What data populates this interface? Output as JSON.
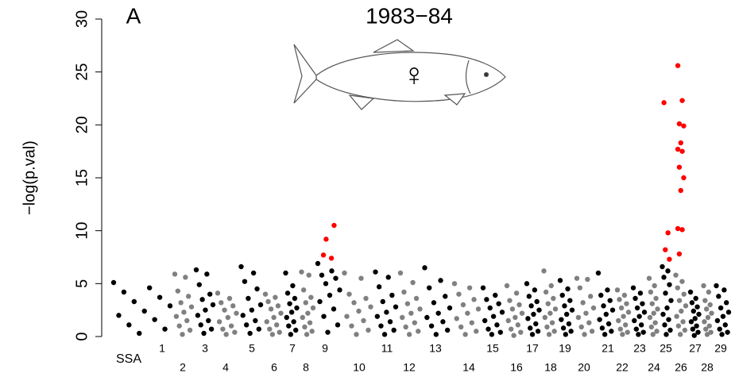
{
  "chart_data": {
    "type": "manhattan",
    "title": "1983−84",
    "panel_label": "A",
    "annotation": "♀",
    "y_label": "−log(p.val)",
    "x_label": "SSA",
    "ylim": [
      0,
      30
    ],
    "yticks": [
      0,
      5,
      10,
      15,
      20,
      25,
      30
    ],
    "colors": [
      "#000000",
      "#808080"
    ],
    "highlight_color": "#ff0000",
    "categories": [
      "1",
      "2",
      "3",
      "4",
      "5",
      "6",
      "7",
      "8",
      "9",
      "10",
      "11",
      "12",
      "13",
      "14",
      "15",
      "16",
      "17",
      "18",
      "19",
      "20",
      "21",
      "22",
      "23",
      "24",
      "25",
      "26",
      "27",
      "28",
      "29"
    ],
    "values": [
      [
        5.1,
        4.6,
        4.2,
        3.7,
        3.3,
        2.9,
        2.4,
        2.0,
        1.6,
        1.1,
        0.7,
        0.3
      ],
      [
        5.9,
        5.6,
        4.3,
        3.8,
        3.2,
        2.8,
        2.3,
        1.9,
        1.5,
        1.0,
        0.6,
        0.2
      ],
      [
        6.3,
        5.9,
        4.9,
        4.0,
        3.5,
        3.0,
        2.5,
        2.0,
        1.5,
        1.1,
        0.7,
        0.3
      ],
      [
        4.1,
        3.6,
        3.2,
        2.9,
        2.5,
        2.2,
        1.8,
        1.4,
        1.0,
        0.7,
        0.4,
        0.2
      ],
      [
        6.6,
        6.0,
        5.2,
        4.5,
        3.6,
        3.0,
        2.5,
        2.0,
        1.5,
        1.1,
        0.7,
        0.3
      ],
      [
        4.0,
        3.7,
        3.3,
        2.9,
        2.6,
        2.2,
        1.8,
        1.4,
        1.1,
        0.7,
        0.4,
        0.2
      ],
      [
        6.0,
        4.8,
        4.1,
        3.6,
        3.1,
        2.7,
        2.3,
        1.8,
        1.4,
        1.0,
        0.6,
        0.2
      ],
      [
        6.1,
        5.8,
        4.4,
        3.7,
        3.2,
        2.7,
        2.2,
        1.8,
        1.3,
        0.9,
        0.5,
        0.2
      ],
      [
        6.9,
        6.2,
        5.8,
        5.5,
        5.0,
        4.4,
        3.9,
        3.3,
        2.6,
        1.9,
        1.1,
        0.4
      ],
      [
        6.0,
        5.5,
        4.0,
        3.6,
        3.2,
        2.8,
        2.4,
        1.9,
        1.5,
        1.0,
        0.6,
        0.2
      ],
      [
        6.1,
        5.6,
        4.7,
        3.9,
        3.3,
        2.8,
        2.3,
        1.9,
        1.4,
        1.0,
        0.6,
        0.2
      ],
      [
        6.0,
        5.1,
        4.2,
        3.6,
        3.1,
        2.6,
        2.2,
        1.8,
        1.3,
        0.9,
        0.5,
        0.2
      ],
      [
        6.5,
        5.3,
        4.6,
        3.8,
        3.2,
        2.7,
        2.2,
        1.8,
        1.4,
        1.0,
        0.6,
        0.2
      ],
      [
        5.0,
        4.6,
        4.0,
        3.5,
        3.0,
        2.6,
        2.2,
        1.7,
        1.3,
        0.9,
        0.5,
        0.2
      ],
      [
        4.6,
        3.9,
        3.5,
        3.1,
        2.7,
        2.3,
        1.9,
        1.5,
        1.1,
        0.7,
        0.4,
        0.2
      ],
      [
        4.8,
        4.1,
        3.4,
        3.0,
        2.6,
        2.2,
        1.8,
        1.5,
        1.1,
        0.7,
        0.4,
        0.1
      ],
      [
        5.0,
        4.4,
        3.8,
        3.3,
        2.9,
        2.5,
        2.1,
        1.7,
        1.2,
        0.8,
        0.5,
        0.2
      ],
      [
        6.2,
        4.8,
        4.2,
        3.6,
        3.1,
        2.6,
        2.2,
        1.8,
        1.3,
        0.9,
        0.5,
        0.2
      ],
      [
        5.3,
        4.5,
        3.9,
        3.4,
        2.9,
        2.5,
        2.1,
        1.6,
        1.2,
        0.8,
        0.5,
        0.2
      ],
      [
        5.5,
        5.4,
        4.6,
        3.8,
        3.2,
        2.7,
        2.2,
        1.8,
        1.3,
        0.9,
        0.5,
        0.2
      ],
      [
        6.0,
        4.4,
        3.9,
        3.4,
        2.9,
        2.5,
        2.1,
        1.6,
        1.2,
        0.8,
        0.5,
        0.2
      ],
      [
        4.4,
        3.9,
        3.5,
        3.1,
        2.7,
        2.3,
        1.9,
        1.5,
        1.1,
        0.7,
        0.4,
        0.2
      ],
      [
        4.6,
        4.1,
        3.6,
        3.1,
        2.7,
        2.3,
        1.9,
        1.5,
        1.1,
        0.7,
        0.4,
        0.2
      ],
      [
        5.5,
        4.8,
        4.2,
        3.6,
        3.1,
        2.6,
        2.2,
        1.8,
        1.3,
        0.9,
        0.5,
        0.2
      ],
      [
        6.6,
        6.2,
        5.6,
        4.9,
        4.1,
        3.4,
        2.7,
        2.1,
        1.6,
        1.1,
        0.6,
        0.2
      ],
      [
        5.8,
        5.2,
        4.6,
        4.0,
        3.4,
        2.9,
        2.4,
        1.9,
        1.4,
        1.0,
        0.6,
        0.2
      ],
      [
        4.2,
        3.6,
        3.2,
        2.8,
        2.4,
        2.1,
        1.7,
        1.4,
        1.0,
        0.7,
        0.4,
        0.1
      ],
      [
        4.8,
        4.2,
        3.4,
        3.0,
        2.6,
        2.2,
        1.8,
        1.4,
        1.0,
        0.7,
        0.4,
        0.2
      ],
      [
        4.8,
        4.4,
        3.8,
        3.2,
        2.7,
        2.3,
        1.9,
        1.5,
        1.1,
        0.7,
        0.4,
        0.2
      ]
    ],
    "highlight_values": [
      [],
      [],
      [],
      [],
      [],
      [],
      [],
      [],
      [
        7.7,
        7.4,
        9.2,
        10.5
      ],
      [],
      [],
      [],
      [],
      [],
      [],
      [],
      [],
      [],
      [],
      [],
      [],
      [],
      [],
      [],
      [
        22.1,
        9.8,
        8.2,
        7.3
      ],
      [
        25.6,
        22.3,
        20.1,
        19.9,
        18.3,
        17.7,
        17.5,
        16.0,
        15.0,
        13.8,
        10.2,
        10.1,
        7.8
      ],
      [],
      [],
      []
    ]
  }
}
